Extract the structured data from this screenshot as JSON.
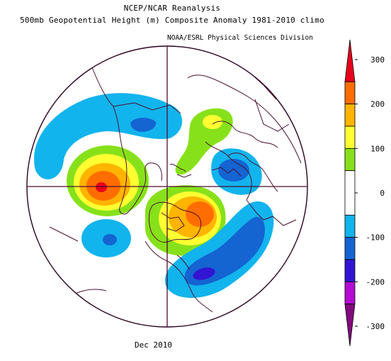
{
  "title_line1": "NCEP/NCAR Reanalysis",
  "title_line2": "500mb Geopotential Height (m) Composite Anomaly 1981-2010 climo",
  "credit": "NOAA/ESRL Physical Sciences Division",
  "date_label": "Dec 2010",
  "colorbar": {
    "ticks": [
      "300",
      "200",
      "100",
      "0",
      "-100",
      "-200",
      "-300"
    ],
    "levels": [
      {
        "from": 250,
        "to": 300,
        "color": "#e8001c"
      },
      {
        "from": 200,
        "to": 250,
        "color": "#ff6d00"
      },
      {
        "from": 150,
        "to": 200,
        "color": "#ffb400"
      },
      {
        "from": 100,
        "to": 150,
        "color": "#ffff32"
      },
      {
        "from": 50,
        "to": 100,
        "color": "#87e11a"
      },
      {
        "from": -50,
        "to": 50,
        "color": "#ffffff"
      },
      {
        "from": -100,
        "to": -50,
        "color": "#12b4ed"
      },
      {
        "from": -150,
        "to": -100,
        "color": "#1464d2"
      },
      {
        "from": -200,
        "to": -150,
        "color": "#3214d2"
      },
      {
        "from": -250,
        "to": -200,
        "color": "#b40cd2"
      },
      {
        "from": -300,
        "to": -250,
        "color": "#820a7d"
      }
    ]
  },
  "anomaly_regions": [
    {
      "name": "north-pacific-low",
      "sign": "negative",
      "peak": -110
    },
    {
      "name": "alaska-bering-high",
      "sign": "positive",
      "peak": 270
    },
    {
      "name": "subtropical-pacific-low",
      "sign": "negative",
      "peak": -130
    },
    {
      "name": "greenland-high",
      "sign": "positive",
      "peak": 230
    },
    {
      "name": "arctic-siberia-high",
      "sign": "positive",
      "peak": 110
    },
    {
      "name": "europe-scandinavia-low",
      "sign": "negative",
      "peak": -120
    },
    {
      "name": "north-atlantic-east-us-low",
      "sign": "negative",
      "peak": -170
    }
  ]
}
